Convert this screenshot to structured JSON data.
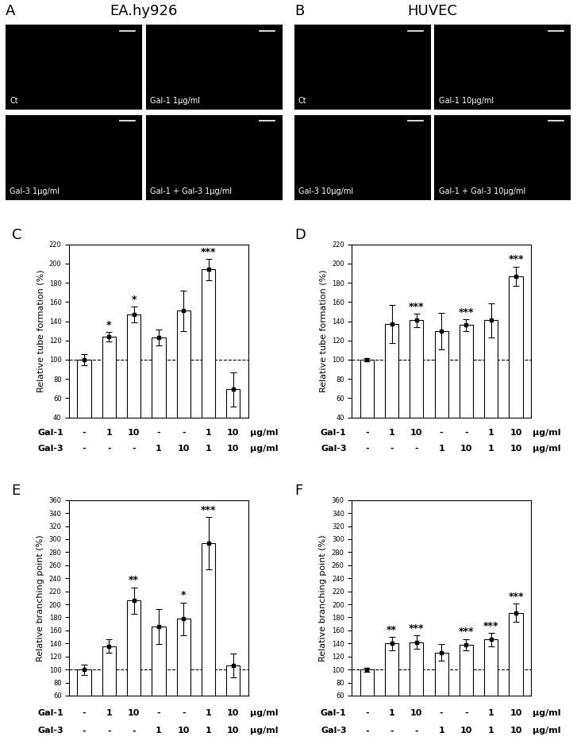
{
  "image_panels": [
    {
      "panel": "A",
      "title": "EA.hy926",
      "images": [
        "Ct",
        "Gal-1 1µg/ml",
        "Gal-3 1µg/ml",
        "Gal-1 + Gal-3 1µg/ml"
      ]
    },
    {
      "panel": "B",
      "title": "HUVEC",
      "images": [
        "Ct",
        "Gal-1 10µg/ml",
        "Gal-3 10µg/ml",
        "Gal-1 + Gal-3 10µg/ml"
      ]
    }
  ],
  "chart_data": [
    {
      "panel": "C",
      "type": "bar",
      "y_label": "Relative tube formation (%)",
      "categories": [
        null,
        null,
        null,
        null,
        null,
        null,
        null
      ],
      "values": [
        100,
        124,
        147,
        123,
        151,
        194,
        69
      ],
      "errors": [
        6,
        5,
        8,
        8,
        21,
        11,
        18
      ],
      "significance": [
        "",
        "*",
        "*",
        "",
        "",
        "***",
        ""
      ],
      "condition_rows": [
        {
          "name": "Gal-1",
          "labels": [
            "-",
            "1",
            "10",
            "-",
            "-",
            "1",
            "10"
          ]
        },
        {
          "name": "Gal-3",
          "labels": [
            "-",
            "-",
            "-",
            "1",
            "10",
            "1",
            "10"
          ]
        }
      ],
      "unit": "µg/ml",
      "reference_line": 100,
      "color": "#ffffff",
      "marker": "s",
      "line_style": "dashed",
      "ylim": [
        40,
        220
      ],
      "yticks": [
        40,
        60,
        80,
        100,
        120,
        140,
        160,
        180,
        200,
        220
      ]
    },
    {
      "panel": "D",
      "type": "bar",
      "y_label": "Relative tube formation (%)",
      "categories": [
        null,
        null,
        null,
        null,
        null,
        null,
        null
      ],
      "values": [
        100,
        137,
        141,
        130,
        136,
        141,
        187
      ],
      "errors": [
        2,
        20,
        7,
        19,
        6,
        18,
        10
      ],
      "significance": [
        "",
        "",
        "***",
        "",
        "***",
        "",
        "***"
      ],
      "condition_rows": [
        {
          "name": "Gal-1",
          "labels": [
            "-",
            "1",
            "10",
            "-",
            "-",
            "1",
            "10"
          ]
        },
        {
          "name": "Gal-3",
          "labels": [
            "-",
            "-",
            "-",
            "1",
            "10",
            "1",
            "10"
          ]
        }
      ],
      "unit": "µg/ml",
      "reference_line": 100,
      "color": "#ffffff",
      "marker": "s",
      "line_style": "dashed",
      "ylim": [
        40,
        220
      ],
      "yticks": [
        40,
        60,
        80,
        100,
        120,
        140,
        160,
        180,
        200,
        220
      ]
    },
    {
      "panel": "E",
      "type": "bar",
      "y_label": "Relative branching point (%)",
      "categories": [
        null,
        null,
        null,
        null,
        null,
        null,
        null
      ],
      "values": [
        100,
        136,
        206,
        166,
        178,
        294,
        106
      ],
      "errors": [
        8,
        10,
        20,
        27,
        25,
        40,
        18
      ],
      "significance": [
        "",
        "",
        "**",
        "",
        "*",
        "***",
        ""
      ],
      "condition_rows": [
        {
          "name": "Gal-1",
          "labels": [
            "-",
            "1",
            "10",
            "-",
            "-",
            "1",
            "10"
          ]
        },
        {
          "name": "Gal-3",
          "labels": [
            "-",
            "-",
            "-",
            "1",
            "10",
            "1",
            "10"
          ]
        }
      ],
      "unit": "µg/ml",
      "reference_line": 100,
      "color": "#ffffff",
      "marker": "s",
      "line_style": "dashed",
      "ylim": [
        60,
        360
      ],
      "yticks": [
        60,
        80,
        100,
        120,
        140,
        160,
        180,
        200,
        220,
        240,
        260,
        280,
        300,
        320,
        340,
        360
      ]
    },
    {
      "panel": "F",
      "type": "bar",
      "y_label": "Relative branching point (%)",
      "categories": [
        null,
        null,
        null,
        null,
        null,
        null,
        null
      ],
      "values": [
        100,
        140,
        142,
        126,
        138,
        146,
        187
      ],
      "errors": [
        3,
        10,
        10,
        13,
        9,
        10,
        14
      ],
      "significance": [
        "",
        "**",
        "***",
        "",
        "***",
        "***",
        "***"
      ],
      "condition_rows": [
        {
          "name": "Gal-1",
          "labels": [
            "-",
            "1",
            "10",
            "-",
            "-",
            "1",
            "10"
          ]
        },
        {
          "name": "Gal-3",
          "labels": [
            "-",
            "-",
            "-",
            "1",
            "10",
            "1",
            "10"
          ]
        }
      ],
      "unit": "µg/ml",
      "reference_line": 100,
      "color": "#ffffff",
      "marker": "s",
      "line_style": "dashed",
      "ylim": [
        60,
        360
      ],
      "yticks": [
        60,
        80,
        100,
        120,
        140,
        160,
        180,
        200,
        220,
        240,
        260,
        280,
        300,
        320,
        340,
        360
      ]
    }
  ]
}
